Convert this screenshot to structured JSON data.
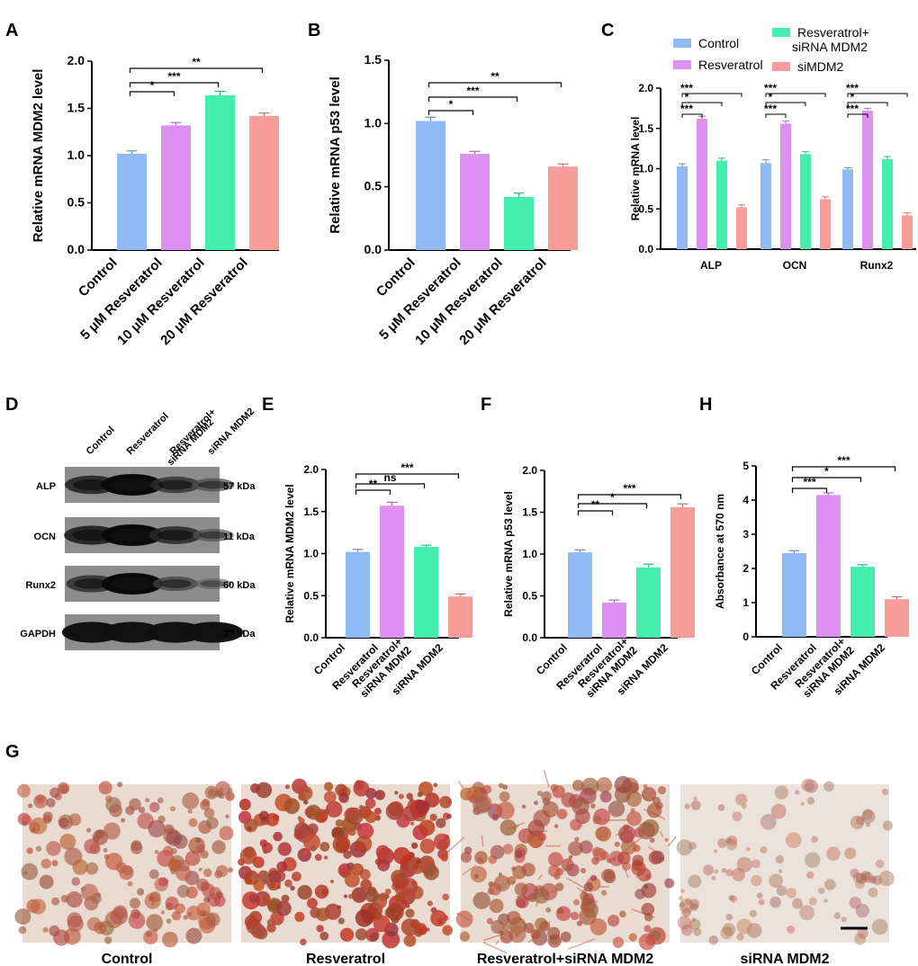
{
  "colors": {
    "Control": "#8fbaf3",
    "Resveratrol": "#dd8ff2",
    "Resveratrol+siRNA MDM2": "#44efae",
    "siMDM2": "#f89d9a",
    "axis": "#000000"
  },
  "chart_data": [
    {
      "panel": "A",
      "type": "bar",
      "ylabel": "Relative mRNA MDM2 level",
      "ylim": [
        0,
        2.0
      ],
      "yticks": [
        "0.0",
        "0.5",
        "1.0",
        "1.5",
        "2.0"
      ],
      "categories": [
        "Control",
        "5 μM Resveratrol",
        "10 μM Resveratrol",
        "20 μM Resveratrol"
      ],
      "values": [
        1.02,
        1.32,
        1.64,
        1.42
      ],
      "errors": [
        0.03,
        0.03,
        0.04,
        0.03
      ],
      "significance": [
        {
          "from": 0,
          "to": 1,
          "label": "*"
        },
        {
          "from": 0,
          "to": 2,
          "label": "***"
        },
        {
          "from": 0,
          "to": 3,
          "label": "**"
        }
      ]
    },
    {
      "panel": "B",
      "type": "bar",
      "ylabel": "Relative mRNA p53 level",
      "ylim": [
        0,
        1.5
      ],
      "yticks": [
        "0.0",
        "0.5",
        "1.0",
        "1.5"
      ],
      "categories": [
        "Control",
        "5 μM Resveratrol",
        "10 μM Resveratrol",
        "20 μM Resveratrol"
      ],
      "values": [
        1.02,
        0.76,
        0.42,
        0.66
      ],
      "errors": [
        0.03,
        0.02,
        0.03,
        0.02
      ],
      "significance": [
        {
          "from": 0,
          "to": 1,
          "label": "*"
        },
        {
          "from": 0,
          "to": 2,
          "label": "***"
        },
        {
          "from": 0,
          "to": 3,
          "label": "**"
        }
      ]
    },
    {
      "panel": "C",
      "type": "bar",
      "ylabel": "Relative mRNA level",
      "ylim": [
        0,
        2.0
      ],
      "yticks": [
        "0.0",
        "0.5",
        "1.0",
        "1.5",
        "2.0"
      ],
      "categories": [
        "ALP",
        "OCN",
        "Runx2"
      ],
      "series": [
        {
          "name": "Control",
          "values": [
            1.03,
            1.07,
            0.99
          ],
          "errors": [
            0.03,
            0.04,
            0.02
          ]
        },
        {
          "name": "Resveratrol",
          "values": [
            1.62,
            1.56,
            1.72
          ],
          "errors": [
            0.03,
            0.03,
            0.03
          ]
        },
        {
          "name": "Resveratrol+ siRNA MDM2",
          "values": [
            1.1,
            1.18,
            1.12
          ],
          "errors": [
            0.03,
            0.03,
            0.03
          ]
        },
        {
          "name": "siMDM2",
          "values": [
            0.52,
            0.62,
            0.42
          ],
          "errors": [
            0.03,
            0.03,
            0.03
          ]
        }
      ],
      "legend": "top",
      "significance": [
        {
          "group": 0,
          "from": 0,
          "to": 1,
          "label": "***"
        },
        {
          "group": 0,
          "from": 0,
          "to": 2,
          "label": "*"
        },
        {
          "group": 0,
          "from": 0,
          "to": 3,
          "label": "***"
        },
        {
          "group": 1,
          "from": 0,
          "to": 1,
          "label": "***"
        },
        {
          "group": 1,
          "from": 0,
          "to": 2,
          "label": "*"
        },
        {
          "group": 1,
          "from": 0,
          "to": 3,
          "label": "***"
        },
        {
          "group": 2,
          "from": 0,
          "to": 1,
          "label": "***"
        },
        {
          "group": 2,
          "from": 0,
          "to": 2,
          "label": "*"
        },
        {
          "group": 2,
          "from": 0,
          "to": 3,
          "label": "***"
        }
      ]
    },
    {
      "panel": "E",
      "type": "bar",
      "ylabel": "Relative mRNA MDM2 level",
      "ylim": [
        0,
        2.0
      ],
      "yticks": [
        "0.0",
        "0.5",
        "1.0",
        "1.5",
        "2.0"
      ],
      "categories": [
        "Control",
        "Resveratrol",
        "Resveratrol+ siRNA MDM2",
        "siRNA MDM2"
      ],
      "values": [
        1.02,
        1.57,
        1.08,
        0.49
      ],
      "errors": [
        0.03,
        0.04,
        0.02,
        0.03
      ],
      "significance": [
        {
          "from": 0,
          "to": 1,
          "label": "**"
        },
        {
          "from": 0,
          "to": 2,
          "label": "ns"
        },
        {
          "from": 0,
          "to": 3,
          "label": "***"
        }
      ]
    },
    {
      "panel": "F",
      "type": "bar",
      "ylabel": "Relative mRNA p53 level",
      "ylim": [
        0,
        2.0
      ],
      "yticks": [
        "0.0",
        "0.5",
        "1.0",
        "1.5",
        "2.0"
      ],
      "categories": [
        "Control",
        "Resveratrol",
        "Resveratrol+ siRNA MDM2",
        "siRNA MDM2"
      ],
      "values": [
        1.02,
        0.42,
        0.84,
        1.56
      ],
      "errors": [
        0.03,
        0.03,
        0.04,
        0.04
      ],
      "significance": [
        {
          "from": 0,
          "to": 1,
          "label": "**"
        },
        {
          "from": 0,
          "to": 2,
          "label": "*"
        },
        {
          "from": 0,
          "to": 3,
          "label": "***"
        }
      ]
    },
    {
      "panel": "H",
      "type": "bar",
      "ylabel": "Absorbance at 570 nm",
      "ylim": [
        0,
        5
      ],
      "yticks": [
        "0",
        "1",
        "2",
        "3",
        "4",
        "5"
      ],
      "categories": [
        "Control",
        "Resveratrol",
        "Resveratrol+ siRNA MDM2",
        "siRNA MDM2"
      ],
      "values": [
        2.45,
        4.15,
        2.05,
        1.1
      ],
      "errors": [
        0.07,
        0.06,
        0.06,
        0.07
      ],
      "significance": [
        {
          "from": 0,
          "to": 1,
          "label": "***"
        },
        {
          "from": 0,
          "to": 2,
          "label": "*"
        },
        {
          "from": 0,
          "to": 3,
          "label": "***"
        }
      ]
    }
  ],
  "western_blot": {
    "panel": "D",
    "lanes": [
      "Control",
      "Resveratrol",
      "Resveratrol+ siRNA MDM2",
      "siRNA MDM2"
    ],
    "rows": [
      {
        "protein": "ALP",
        "size": "57 kDa",
        "intensities": [
          0.75,
          1.0,
          0.6,
          0.35
        ]
      },
      {
        "protein": "OCN",
        "size": "11 kDa",
        "intensities": [
          0.8,
          1.0,
          0.7,
          0.3
        ]
      },
      {
        "protein": "Runx2",
        "size": "60 kDa",
        "intensities": [
          0.65,
          1.0,
          0.45,
          0.15
        ]
      },
      {
        "protein": "GAPDH",
        "size": "37 kDa",
        "intensities": [
          0.95,
          0.95,
          0.95,
          0.95
        ]
      }
    ]
  },
  "staining": {
    "panel": "G",
    "captions": [
      "Control",
      "Resveratrol",
      "Resveratrol+siRNA MDM2",
      "siRNA MDM2"
    ],
    "density": [
      0.55,
      0.9,
      0.6,
      0.2
    ]
  }
}
